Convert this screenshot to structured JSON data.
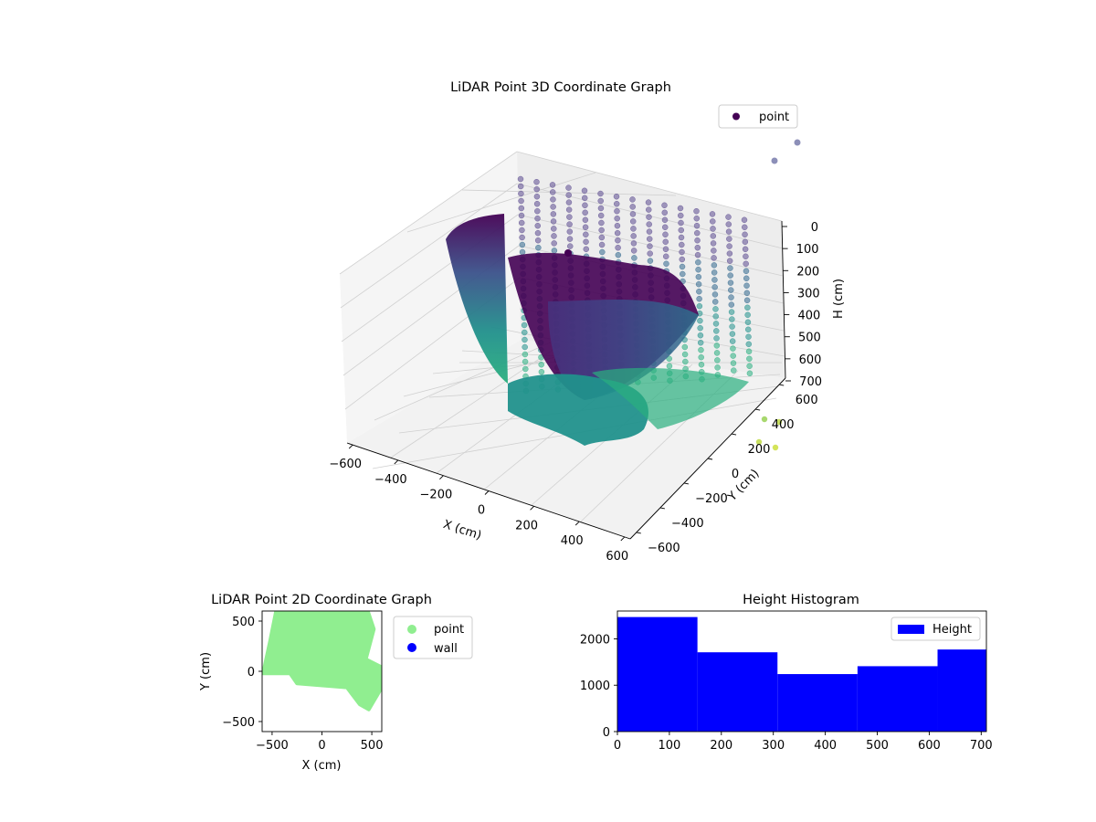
{
  "chart_data": [
    {
      "type": "scatter3d",
      "title": "LiDAR Point 3D Coordinate Graph",
      "xlabel": "X (cm)",
      "ylabel": "Y (cm)",
      "zlabel": "H (cm)",
      "xlim": [
        -600,
        600
      ],
      "ylim": [
        -600,
        600
      ],
      "zlim": [
        0,
        700
      ],
      "z_inverted": true,
      "x_ticks": [
        "−600",
        "−400",
        "−200",
        "0",
        "200",
        "400",
        "600"
      ],
      "y_ticks": [
        "−600",
        "−400",
        "−200",
        "0",
        "200",
        "400",
        "600"
      ],
      "z_ticks": [
        "0",
        "100",
        "200",
        "300",
        "400",
        "500",
        "600",
        "700"
      ],
      "legend": [
        "point"
      ],
      "legend_position": "top-right",
      "colormap": "viridis",
      "grid": true
    },
    {
      "type": "scatter",
      "title": "LiDAR Point 2D Coordinate Graph",
      "xlabel": "X (cm)",
      "ylabel": "Y (cm)",
      "xlim": [
        -600,
        600
      ],
      "ylim": [
        -600,
        600
      ],
      "x_ticks": [
        "−500",
        "0",
        "500"
      ],
      "y_ticks": [
        "−500",
        "0",
        "500"
      ],
      "legend_position": "outside-right",
      "series": [
        {
          "name": "point",
          "color": "#90ee90",
          "outline": [
            [
              -460,
              600
            ],
            [
              460,
              600
            ],
            [
              520,
              420
            ],
            [
              440,
              120
            ],
            [
              600,
              40
            ],
            [
              600,
              -160
            ],
            [
              470,
              -380
            ],
            [
              380,
              -330
            ],
            [
              250,
              -160
            ],
            [
              -250,
              -120
            ],
            [
              -320,
              -20
            ],
            [
              -590,
              -20
            ],
            [
              -520,
              300
            ],
            [
              -460,
              600
            ]
          ]
        },
        {
          "name": "wall",
          "color": "#0000ff",
          "outline": []
        }
      ]
    },
    {
      "type": "histogram",
      "title": "Height Histogram",
      "xlim": [
        0,
        710
      ],
      "ylim": [
        0,
        2600
      ],
      "x_ticks": [
        "0",
        "100",
        "200",
        "300",
        "400",
        "500",
        "600",
        "700"
      ],
      "y_ticks": [
        "0",
        "1000",
        "2000"
      ],
      "legend_position": "top-right",
      "color": "#0000ff",
      "series": [
        {
          "name": "Height",
          "bins": [
            0,
            154,
            308,
            462,
            616,
            770
          ],
          "values": [
            2470,
            1710,
            1240,
            1410,
            1770
          ]
        }
      ]
    }
  ]
}
